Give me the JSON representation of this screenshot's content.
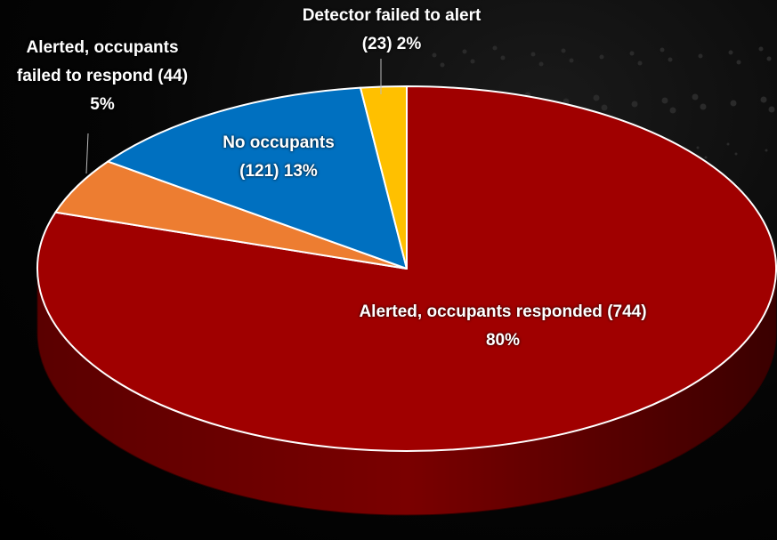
{
  "chart_data": {
    "type": "pie3d",
    "categories": [
      "Alerted, occupants responded",
      "Alerted, occupants failed to respond",
      "No occupants",
      "Detector failed to alert"
    ],
    "values": [
      80,
      5,
      13,
      2
    ],
    "value_labels": [
      "(744) 80%",
      "(44) 5%",
      "(121) 13%",
      "(23) 2%"
    ],
    "colors": [
      "#a00000",
      "#ed7d31",
      "#0070c0",
      "#ffc000"
    ]
  }
}
